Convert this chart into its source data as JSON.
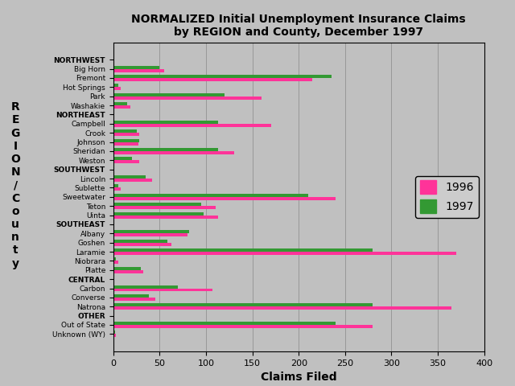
{
  "title": "NORMALIZED Initial Unemployment Insurance Claims\nby REGION and County, December 1997",
  "xlabel": "Claims Filed",
  "ylabel": "R\nE\nG\nI\nO\nN\n/\nC\no\nu\nn\nt\ny",
  "categories": [
    "NORTHWEST",
    "Big Horn",
    "Fremont",
    "Hot Springs",
    "Park",
    "Washakie",
    "NORTHEAST",
    "Campbell",
    "Crook",
    "Johnson",
    "Sheridan",
    "Weston",
    "SOUTHWEST",
    "Lincoln",
    "Sublette",
    "Sweetwater",
    "Teton",
    "Uinta",
    "SOUTHEAST",
    "Albany",
    "Goshen",
    "Laramie",
    "Niobrara",
    "Platte",
    "CENTRAL",
    "Carbon",
    "Converse",
    "Natrona",
    "OTHER",
    "Out of State",
    "Unknown (WY)"
  ],
  "values_1996": [
    0,
    55,
    215,
    8,
    160,
    18,
    0,
    170,
    28,
    27,
    130,
    28,
    0,
    42,
    8,
    240,
    110,
    113,
    0,
    80,
    63,
    370,
    5,
    32,
    0,
    107,
    45,
    365,
    0,
    280,
    3
  ],
  "values_1997": [
    0,
    50,
    235,
    5,
    120,
    15,
    0,
    113,
    25,
    28,
    113,
    20,
    0,
    35,
    5,
    210,
    95,
    97,
    0,
    82,
    58,
    280,
    3,
    30,
    0,
    70,
    38,
    280,
    0,
    240,
    2
  ],
  "color_1996": "#FF3399",
  "color_1997": "#339933",
  "background_color": "#C0C0C0",
  "xlim": [
    0,
    400
  ],
  "xticks": [
    0,
    50,
    100,
    150,
    200,
    250,
    300,
    350,
    400
  ],
  "region_labels": [
    "NORTHWEST",
    "NORTHEAST",
    "SOUTHWEST",
    "SOUTHEAST",
    "CENTRAL",
    "OTHER"
  ],
  "legend_labels": [
    "1996",
    "1997"
  ],
  "figsize": [
    6.4,
    4.8
  ],
  "dpi": 100
}
